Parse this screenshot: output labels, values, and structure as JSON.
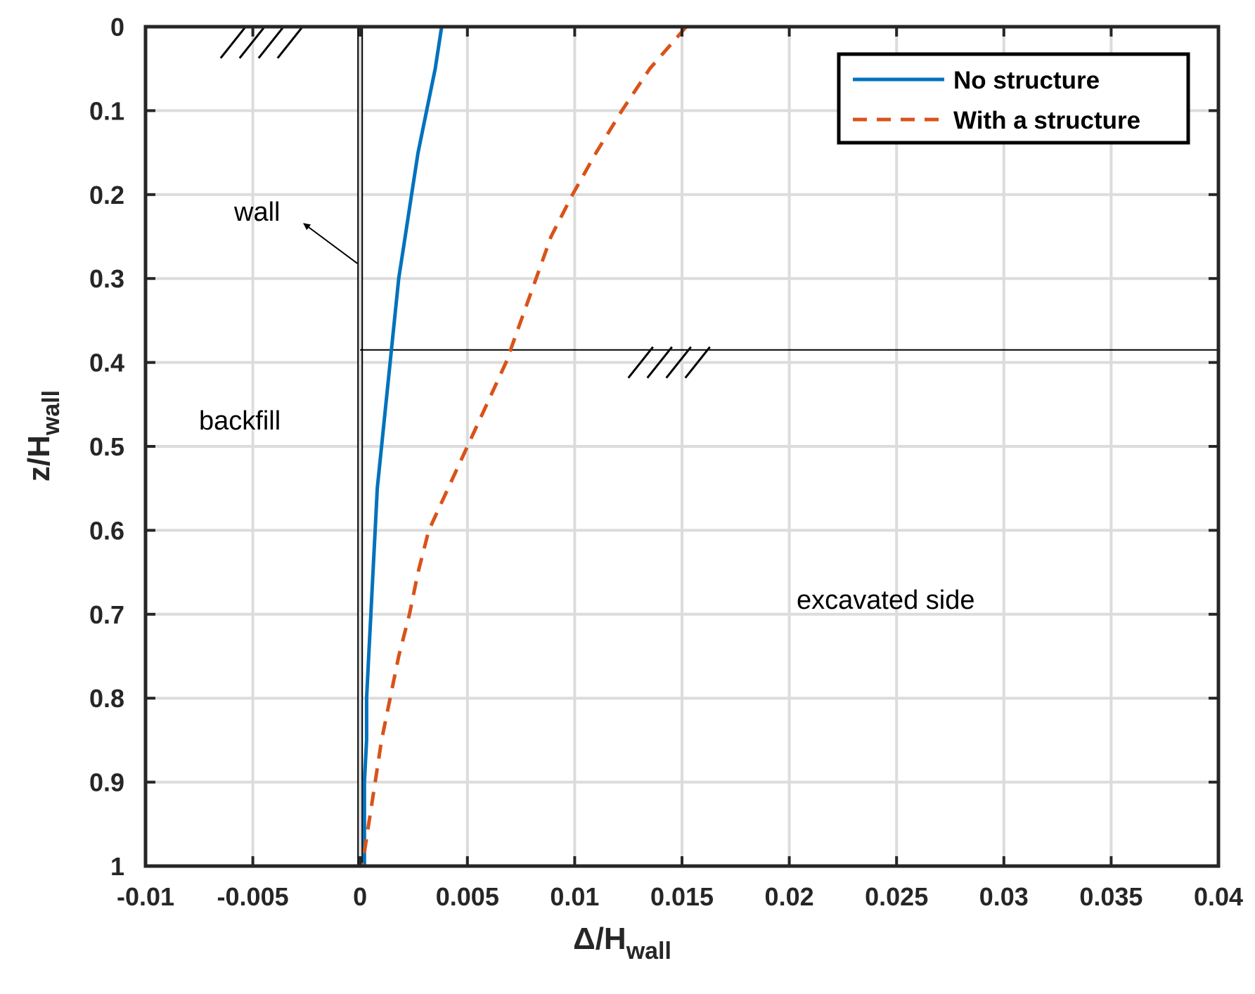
{
  "chart_data": {
    "type": "line",
    "orientation": "depth-profile",
    "xlabel": {
      "main": "Δ/H",
      "sub": "wall"
    },
    "ylabel": {
      "main": "z/H",
      "sub": "wall"
    },
    "xlim": [
      -0.01,
      0.04
    ],
    "ylim": [
      0,
      1
    ],
    "y_reversed": true,
    "grid": true,
    "x_ticks": [
      -0.01,
      -0.005,
      0,
      0.005,
      0.01,
      0.015,
      0.02,
      0.025,
      0.03,
      0.035,
      0.04
    ],
    "x_tick_labels": [
      "-0.01",
      "-0.005",
      "0",
      "0.005",
      "0.01",
      "0.015",
      "0.02",
      "0.025",
      "0.03",
      "0.035",
      "0.04"
    ],
    "y_ticks": [
      0,
      0.1,
      0.2,
      0.3,
      0.4,
      0.5,
      0.6,
      0.7,
      0.8,
      0.9,
      1
    ],
    "y_tick_labels": [
      "0",
      "0.1",
      "0.2",
      "0.3",
      "0.4",
      "0.5",
      "0.6",
      "0.7",
      "0.8",
      "0.9",
      "1"
    ],
    "legend_position": "top-right",
    "series": [
      {
        "name": "No structure",
        "color": "#0072BD",
        "style": "solid",
        "points": [
          [
            0.0038,
            0
          ],
          [
            0.0035,
            0.05
          ],
          [
            0.0031,
            0.1
          ],
          [
            0.0027,
            0.15
          ],
          [
            0.0024,
            0.2
          ],
          [
            0.0021,
            0.25
          ],
          [
            0.0018,
            0.3
          ],
          [
            0.0016,
            0.35
          ],
          [
            0.0014,
            0.4
          ],
          [
            0.0012,
            0.45
          ],
          [
            0.001,
            0.5
          ],
          [
            0.0008,
            0.55
          ],
          [
            0.0007,
            0.6
          ],
          [
            0.0006,
            0.65
          ],
          [
            0.0005,
            0.7
          ],
          [
            0.0004,
            0.75
          ],
          [
            0.0003,
            0.8
          ],
          [
            0.0003,
            0.85
          ],
          [
            0.0002,
            0.9
          ],
          [
            0.0002,
            0.95
          ],
          [
            0.0002,
            1
          ]
        ]
      },
      {
        "name": "With a structure",
        "color": "#D95319",
        "style": "dashed",
        "points": [
          [
            0.0152,
            0
          ],
          [
            0.0135,
            0.05
          ],
          [
            0.0122,
            0.1
          ],
          [
            0.011,
            0.15
          ],
          [
            0.0099,
            0.2
          ],
          [
            0.0089,
            0.25
          ],
          [
            0.0082,
            0.3
          ],
          [
            0.0075,
            0.35
          ],
          [
            0.0068,
            0.4
          ],
          [
            0.0059,
            0.45
          ],
          [
            0.005,
            0.5
          ],
          [
            0.0041,
            0.55
          ],
          [
            0.0032,
            0.6
          ],
          [
            0.0027,
            0.65
          ],
          [
            0.0023,
            0.7
          ],
          [
            0.0018,
            0.75
          ],
          [
            0.0014,
            0.8
          ],
          [
            0.001,
            0.85
          ],
          [
            0.0007,
            0.9
          ],
          [
            0.0004,
            0.95
          ],
          [
            0.0001,
            1
          ]
        ]
      }
    ],
    "annotations": [
      {
        "text": "wall"
      },
      {
        "text": "backfill"
      },
      {
        "text": "excavated side"
      }
    ],
    "reference_lines": {
      "wall_x": 0,
      "excavation_level_y": 0.385
    }
  }
}
